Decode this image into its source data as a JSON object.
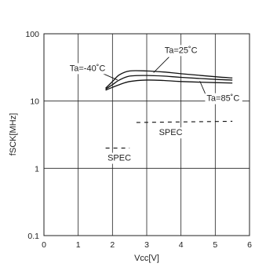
{
  "chart_data": {
    "type": "line",
    "title": "",
    "xlabel": "Vcc[V]",
    "ylabel": "fSCK[MHz]",
    "xlim": [
      0,
      6
    ],
    "ylim": [
      0.1,
      100
    ],
    "y_scale": "log",
    "grid": true,
    "x_ticks": [
      "0",
      "1",
      "2",
      "3",
      "4",
      "5",
      "6"
    ],
    "y_ticks": [
      {
        "value": 100,
        "label": "100"
      },
      {
        "value": 10,
        "label": "10"
      },
      {
        "value": 1,
        "label": "1"
      },
      {
        "value": 0.1,
        "label": "0.1"
      }
    ],
    "series": [
      {
        "name": "Ta=-40˚C",
        "style": "solid",
        "points": [
          [
            1.8,
            15.5
          ],
          [
            2.0,
            19.5
          ],
          [
            2.2,
            24.5
          ],
          [
            2.5,
            28
          ],
          [
            3.0,
            28
          ],
          [
            3.5,
            27
          ],
          [
            4.0,
            25.5
          ],
          [
            5.0,
            23
          ],
          [
            5.5,
            22
          ]
        ]
      },
      {
        "name": "Ta=25˚C",
        "style": "solid",
        "points": [
          [
            1.8,
            15
          ],
          [
            2.0,
            17.5
          ],
          [
            2.2,
            20.5
          ],
          [
            2.5,
            23.5
          ],
          [
            3.0,
            24
          ],
          [
            3.5,
            23.5
          ],
          [
            4.0,
            22.5
          ],
          [
            5.0,
            21
          ],
          [
            5.5,
            20.5
          ]
        ]
      },
      {
        "name": "Ta=85˚C",
        "style": "solid",
        "points": [
          [
            1.8,
            14.5
          ],
          [
            2.0,
            16
          ],
          [
            2.2,
            17.5
          ],
          [
            2.5,
            19.5
          ],
          [
            3.0,
            20.5
          ],
          [
            3.5,
            20.2
          ],
          [
            4.0,
            19.5
          ],
          [
            5.0,
            18.8
          ],
          [
            5.5,
            18.5
          ]
        ]
      },
      {
        "name": "SPEC",
        "style": "dashed",
        "segment": "low",
        "points": [
          [
            1.8,
            2
          ],
          [
            2.5,
            2
          ]
        ]
      },
      {
        "name": "SPEC",
        "style": "dashed",
        "segment": "high",
        "points": [
          [
            2.7,
            4.8
          ],
          [
            5.5,
            5
          ]
        ]
      }
    ],
    "annotations": [
      {
        "text": "Ta=-40˚C",
        "x": 0.75,
        "y": 28,
        "anchor": "start"
      },
      {
        "text": "Ta=25˚C",
        "x": 4.0,
        "y": 52,
        "anchor": "middle"
      },
      {
        "text": "Ta=85˚C",
        "x": 4.75,
        "y": 10,
        "anchor": "start"
      },
      {
        "text": "SPEC",
        "x": 3.7,
        "y": 3.1,
        "anchor": "middle"
      },
      {
        "text": "SPEC",
        "x": 2.2,
        "y": 1.3,
        "anchor": "middle"
      }
    ],
    "colors": {
      "line": "#111111",
      "grid": "#222222",
      "text": "#222222"
    }
  }
}
